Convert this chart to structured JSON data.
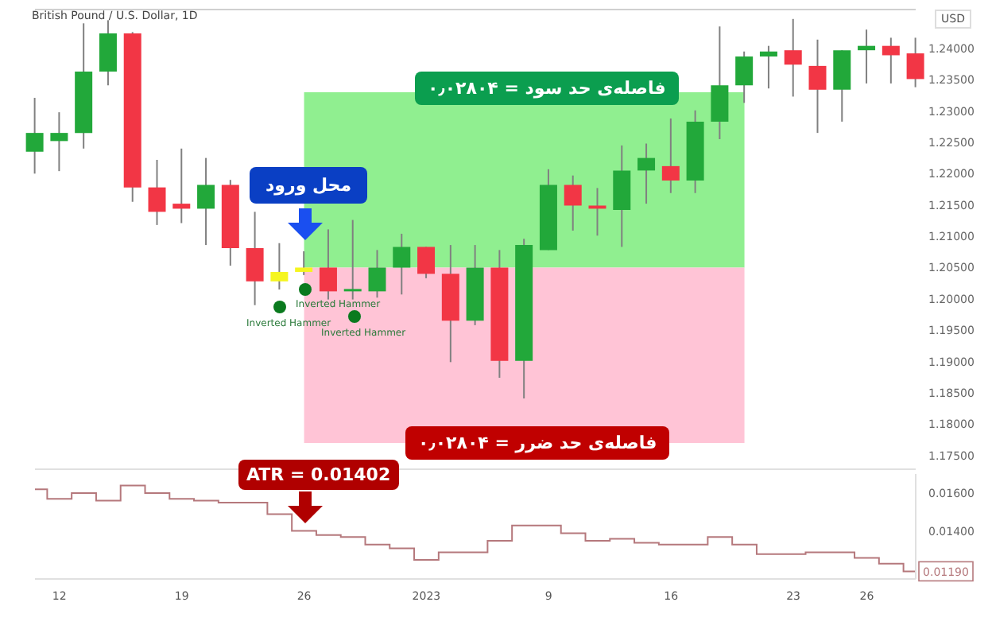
{
  "chart_data": [
    {
      "type": "candlestick",
      "title": "British Pound / U.S. Dollar, 1D",
      "ylabel": "USD",
      "categories": [
        null,
        "12",
        null,
        null,
        null,
        null,
        "19",
        null,
        null,
        null,
        null,
        "26",
        null,
        null,
        null,
        null,
        "2023",
        null,
        null,
        null,
        null,
        "9",
        null,
        null,
        null,
        null,
        "16",
        null,
        null,
        null,
        null,
        "23",
        null,
        null,
        "26",
        null,
        null
      ],
      "ohlc": [
        [
          1.2235,
          1.2321,
          1.22,
          1.2265
        ],
        [
          1.2252,
          1.2298,
          1.2204,
          1.2265
        ],
        [
          1.2265,
          1.244,
          1.224,
          1.2363
        ],
        [
          1.2363,
          1.2445,
          1.2341,
          1.2424
        ],
        [
          1.2424,
          1.2426,
          1.2155,
          1.2178
        ],
        [
          1.2178,
          1.2222,
          1.2118,
          1.2139
        ],
        [
          1.2152,
          1.224,
          1.2121,
          1.2144
        ],
        [
          1.2144,
          1.2225,
          1.2086,
          1.2182
        ],
        [
          1.2182,
          1.219,
          1.2053,
          1.2081
        ],
        [
          1.2081,
          1.2139,
          1.199,
          1.2028
        ],
        [
          1.2028,
          1.2089,
          1.2015,
          1.2043
        ],
        [
          1.2043,
          1.2076,
          1.2038,
          1.205
        ],
        [
          1.205,
          1.2111,
          1.1999,
          1.2012
        ],
        [
          1.2012,
          1.2126,
          1.1999,
          1.2015
        ],
        [
          1.2012,
          1.2078,
          1.2002,
          1.205
        ],
        [
          1.205,
          1.2104,
          1.2007,
          1.2083
        ],
        [
          1.2083,
          1.2083,
          1.2033,
          1.204
        ],
        [
          1.204,
          1.2086,
          1.1899,
          1.1965
        ],
        [
          1.1965,
          1.2086,
          1.1958,
          1.205
        ],
        [
          1.205,
          1.2078,
          1.1874,
          1.1901
        ],
        [
          1.1901,
          1.2096,
          1.1841,
          1.2086
        ],
        [
          1.2078,
          1.2207,
          1.2078,
          1.2182
        ],
        [
          1.2182,
          1.2197,
          1.2109,
          1.2149
        ],
        [
          1.2149,
          1.2177,
          1.2101,
          1.2144
        ],
        [
          1.2142,
          1.2245,
          1.2083,
          1.2205
        ],
        [
          1.2205,
          1.2248,
          1.2152,
          1.2225
        ],
        [
          1.2212,
          1.2288,
          1.2169,
          1.2189
        ],
        [
          1.2189,
          1.2301,
          1.2169,
          1.2283
        ],
        [
          1.2283,
          1.2435,
          1.2255,
          1.2341
        ],
        [
          1.2341,
          1.2395,
          1.2313,
          1.2387
        ],
        [
          1.2387,
          1.2404,
          1.2336,
          1.2395
        ],
        [
          1.2397,
          1.2447,
          1.2323,
          1.2374
        ],
        [
          1.2372,
          1.2414,
          1.2265,
          1.2334
        ],
        [
          1.2334,
          1.2397,
          1.2283,
          1.2397
        ],
        [
          1.2397,
          1.243,
          1.2344,
          1.2404
        ],
        [
          1.2404,
          1.2417,
          1.2344,
          1.2389
        ],
        [
          1.2392,
          1.2417,
          1.2338,
          1.2351
        ]
      ],
      "colors": [
        "#22a83a",
        "#22a83a",
        "#22a83a",
        "#22a83a",
        "#f23645",
        "#f23645",
        "#f23645",
        "#22a83a",
        "#f23645",
        "#f23645",
        "#f5f51f",
        "#f5f51f",
        "#f23645",
        "#22a83a",
        "#22a83a",
        "#22a83a",
        "#f23645",
        "#f23645",
        "#22a83a",
        "#f23645",
        "#22a83a",
        "#22a83a",
        "#f23645",
        "#f23645",
        "#22a83a",
        "#22a83a",
        "#f23645",
        "#22a83a",
        "#22a83a",
        "#22a83a",
        "#22a83a",
        "#f23645",
        "#f23645",
        "#22a83a",
        "#22a83a",
        "#f23645",
        "#f23645"
      ],
      "ylim": [
        1.1728,
        1.2462
      ],
      "yticks": [
        {
          "value": 1.175,
          "label": "1.17500"
        },
        {
          "value": 1.18,
          "label": "1.18000"
        },
        {
          "value": 1.185,
          "label": "1.18500"
        },
        {
          "value": 1.19,
          "label": "1.19000"
        },
        {
          "value": 1.195,
          "label": "1.19500"
        },
        {
          "value": 1.2,
          "label": "1.20000"
        },
        {
          "value": 1.205,
          "label": "1.20500"
        },
        {
          "value": 1.21,
          "label": "1.21000"
        },
        {
          "value": 1.215,
          "label": "1.21500"
        },
        {
          "value": 1.22,
          "label": "1.22000"
        },
        {
          "value": 1.225,
          "label": "1.22500"
        },
        {
          "value": 1.23,
          "label": "1.23000"
        },
        {
          "value": 1.235,
          "label": "1.23500"
        },
        {
          "value": 1.24,
          "label": "1.24000"
        }
      ],
      "bands": [
        {
          "axis": "y",
          "from": 1.205,
          "to": 1.233,
          "label": "فاصله‌ی حد سود = ۰٫۰۲۸۰۴",
          "color": "#90ef90"
        },
        {
          "axis": "y",
          "from": 1.177,
          "to": 1.205,
          "label": "فاصله‌ی حد ضرر = ۰٫۰۲۸۰۴",
          "color": "#ffc4d6"
        }
      ],
      "annotations": [
        "محل ورود",
        "Inverted Hammer",
        "Inverted Hammer",
        "Inverted Hammer"
      ],
      "tick_labels": "y"
    },
    {
      "type": "step",
      "categories": [
        null,
        "12",
        null,
        null,
        null,
        null,
        "19",
        null,
        null,
        null,
        null,
        "26",
        null,
        null,
        null,
        null,
        "2023",
        null,
        null,
        null,
        null,
        "9",
        null,
        null,
        null,
        null,
        "16",
        null,
        null,
        null,
        null,
        "23",
        null,
        null,
        "26",
        null,
        null
      ],
      "series": [
        {
          "color": "#b5787c",
          "values": [
            0.0162,
            0.0157,
            0.016,
            0.0156,
            0.0164,
            0.016,
            0.0157,
            0.0156,
            0.0155,
            0.0155,
            0.0149,
            0.01402,
            0.0138,
            0.0137,
            0.0133,
            0.0131,
            0.0125,
            0.0129,
            0.0129,
            0.0135,
            0.0143,
            0.0143,
            0.0139,
            0.0135,
            0.0136,
            0.0134,
            0.0133,
            0.0133,
            0.0137,
            0.0133,
            0.0128,
            0.0128,
            0.0129,
            0.0129,
            0.0126,
            0.0123,
            0.0119
          ],
          "value_labels": [
            null,
            null,
            null,
            null,
            null,
            null,
            null,
            null,
            null,
            null,
            null,
            null,
            null,
            null,
            null,
            null,
            null,
            null,
            null,
            null,
            null,
            null,
            null,
            null,
            null,
            null,
            null,
            null,
            null,
            null,
            null,
            null,
            null,
            null,
            null,
            null,
            "0.01190"
          ]
        }
      ],
      "ylim": [
        0.0115,
        0.017
      ],
      "yticks": [
        {
          "value": 0.014,
          "label": "0.01400"
        },
        {
          "value": 0.016,
          "label": "0.01600"
        }
      ],
      "annotations": [
        "ATR = 0.01402"
      ]
    }
  ]
}
